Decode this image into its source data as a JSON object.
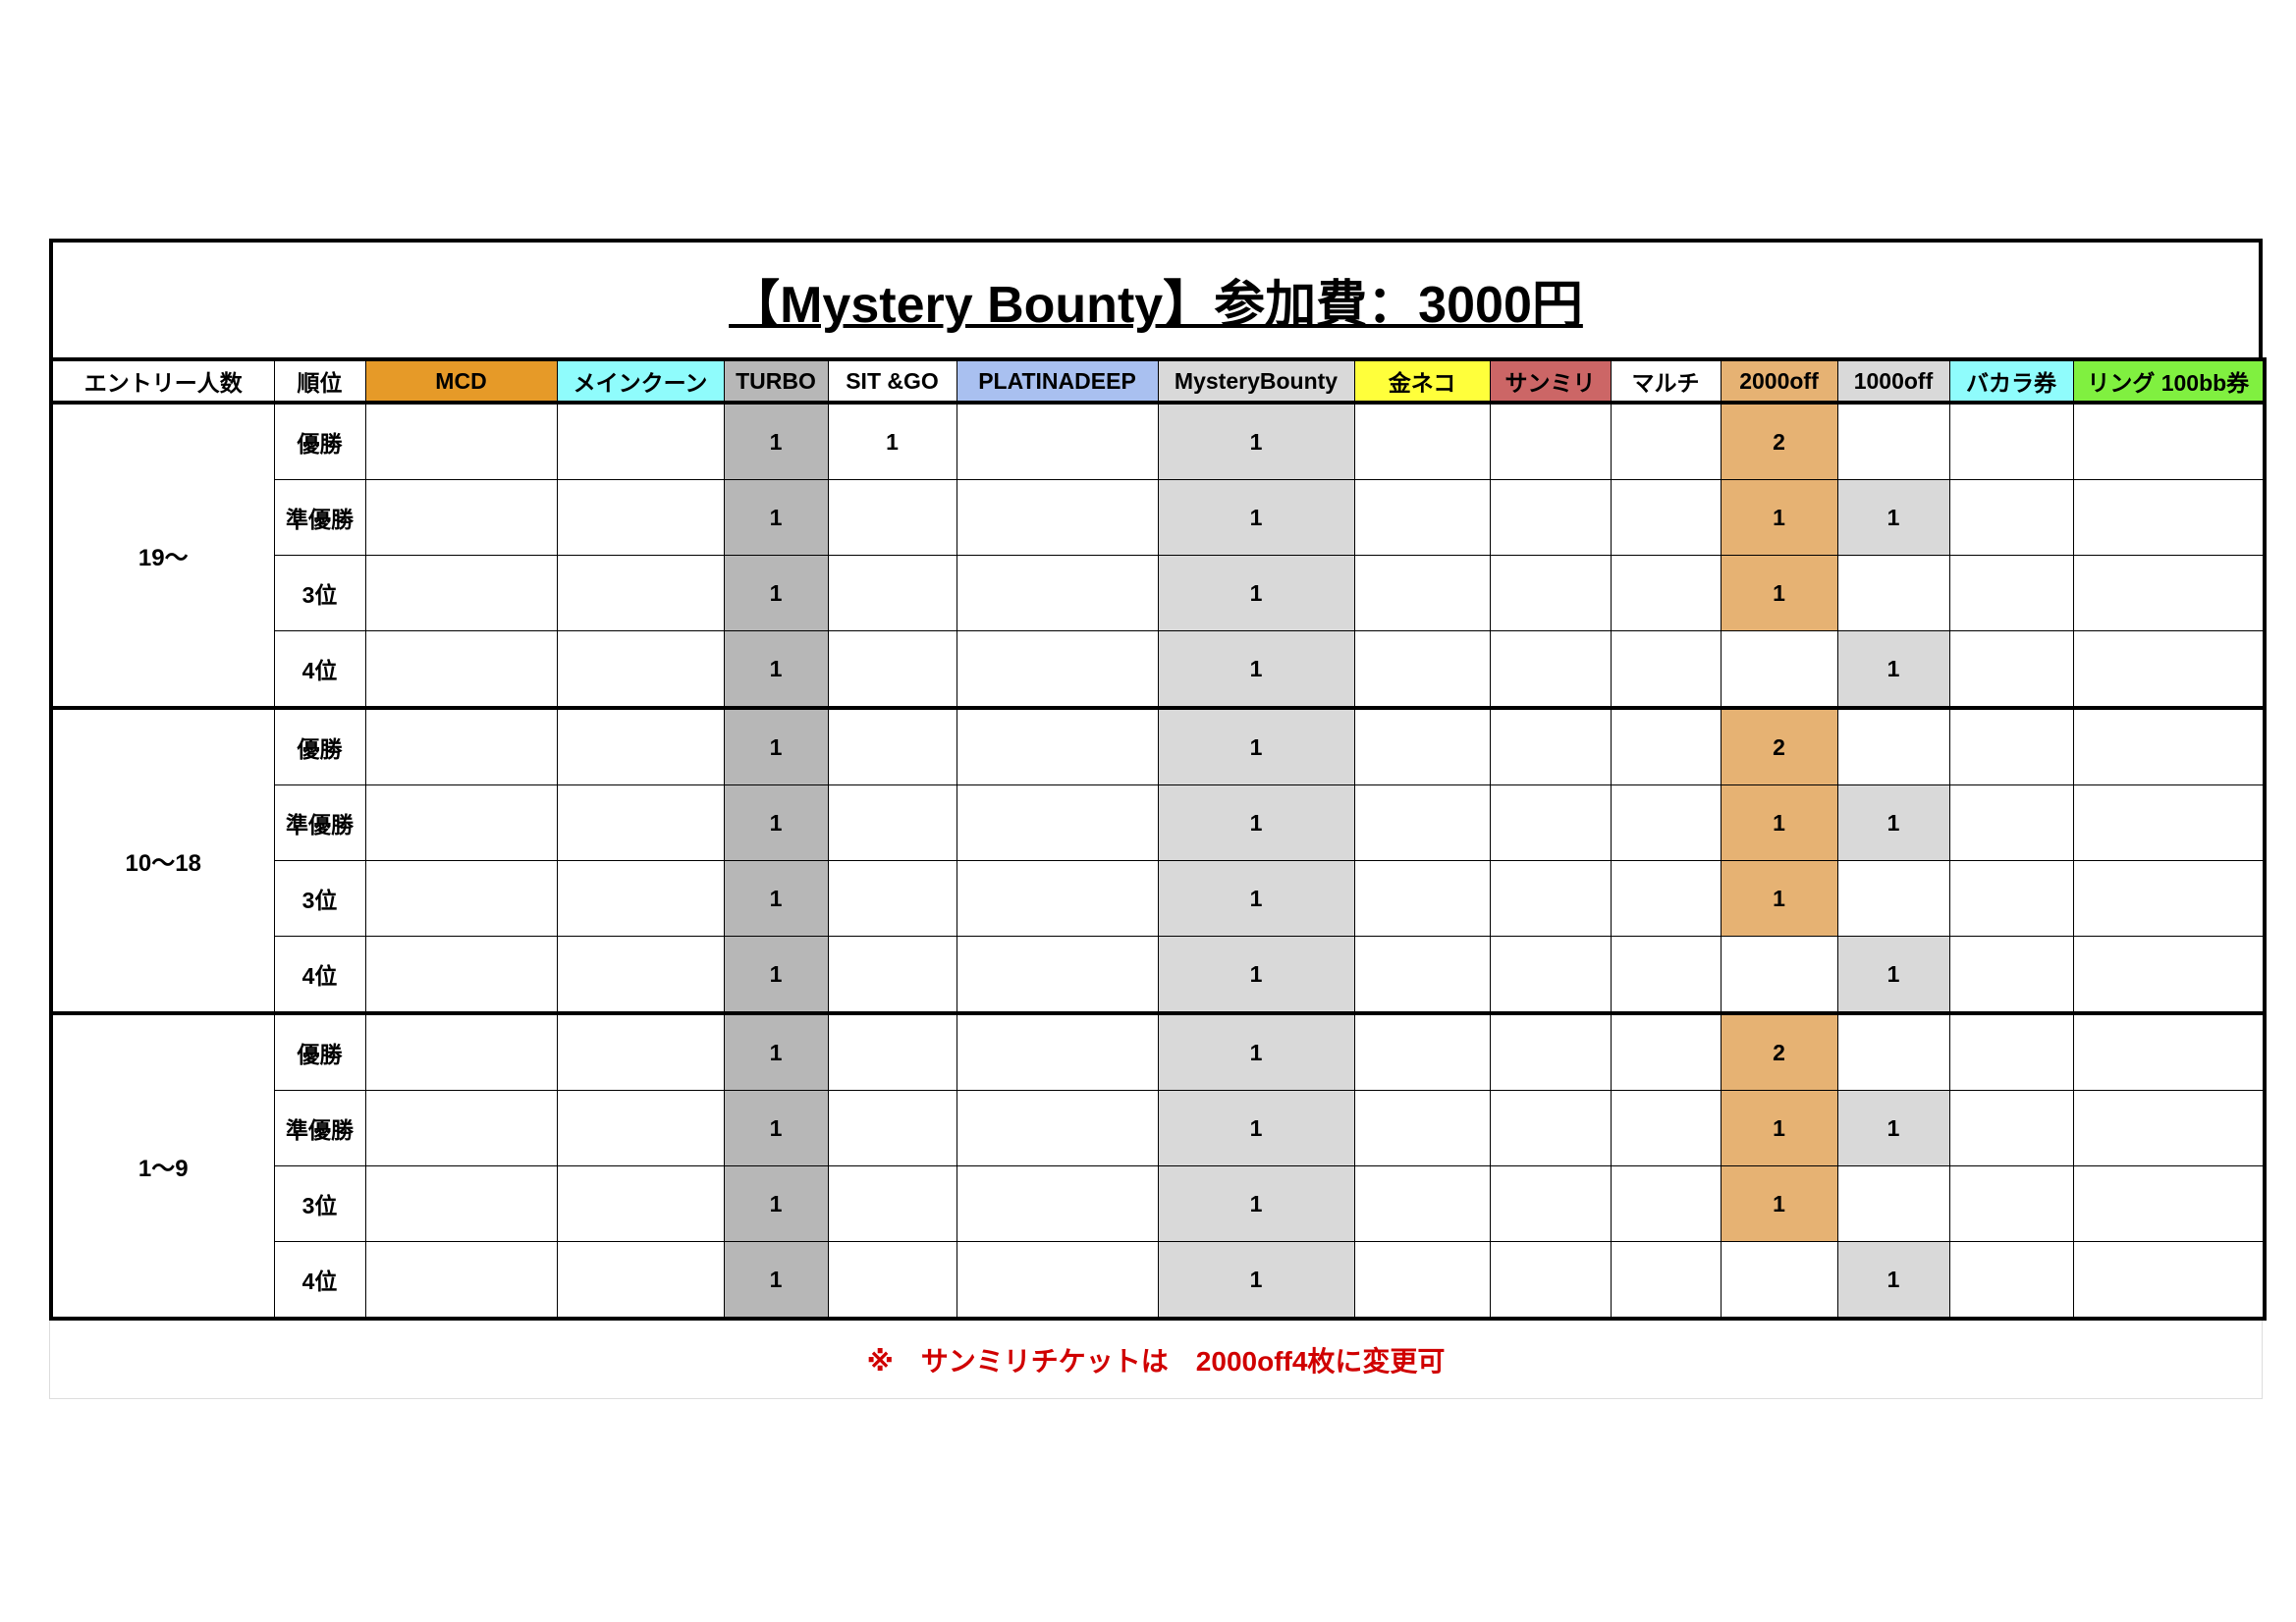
{
  "title": "【Mystery Bounty】参加費：3000円",
  "headers": [
    {
      "label": "エントリー人数",
      "color": "#ffffff"
    },
    {
      "label": "順位",
      "color": "#ffffff"
    },
    {
      "label": "MCD",
      "color": "#e69a28"
    },
    {
      "label": "メインクーン",
      "color": "#8ffcfc"
    },
    {
      "label": "TURBO",
      "color": "#b7b7b7"
    },
    {
      "label": "SIT &GO",
      "color": "#ffffff"
    },
    {
      "label": "PLATINADEEP",
      "color": "#a9c0f0"
    },
    {
      "label": "MysteryBounty",
      "color": "#d9d9d9"
    },
    {
      "label": "金ネコ",
      "color": "#ffff3b"
    },
    {
      "label": "サンミリ",
      "color": "#cc6666"
    },
    {
      "label": "マルチ",
      "color": "#ffffff"
    },
    {
      "label": "2000off",
      "color": "#e6b273"
    },
    {
      "label": "1000off",
      "color": "#d9d9d9"
    },
    {
      "label": "バカラ券",
      "color": "#8ffcfc"
    },
    {
      "label": "リング 100bb券",
      "color": "#80f040"
    }
  ],
  "groups": [
    {
      "entry": "19〜",
      "rows": [
        {
          "rank": "優勝",
          "values": [
            "",
            "",
            "1",
            "1",
            "",
            "1",
            "",
            "",
            "",
            "2",
            "",
            "",
            ""
          ]
        },
        {
          "rank": "準優勝",
          "values": [
            "",
            "",
            "1",
            "",
            "",
            "1",
            "",
            "",
            "",
            "1",
            "1",
            "",
            ""
          ]
        },
        {
          "rank": "3位",
          "values": [
            "",
            "",
            "1",
            "",
            "",
            "1",
            "",
            "",
            "",
            "1",
            "",
            "",
            ""
          ]
        },
        {
          "rank": "4位",
          "values": [
            "",
            "",
            "1",
            "",
            "",
            "1",
            "",
            "",
            "",
            "",
            "1",
            "",
            ""
          ]
        }
      ]
    },
    {
      "entry": "10〜18",
      "rows": [
        {
          "rank": "優勝",
          "values": [
            "",
            "",
            "1",
            "",
            "",
            "1",
            "",
            "",
            "",
            "2",
            "",
            "",
            ""
          ]
        },
        {
          "rank": "準優勝",
          "values": [
            "",
            "",
            "1",
            "",
            "",
            "1",
            "",
            "",
            "",
            "1",
            "1",
            "",
            ""
          ]
        },
        {
          "rank": "3位",
          "values": [
            "",
            "",
            "1",
            "",
            "",
            "1",
            "",
            "",
            "",
            "1",
            "",
            "",
            ""
          ]
        },
        {
          "rank": "4位",
          "values": [
            "",
            "",
            "1",
            "",
            "",
            "1",
            "",
            "",
            "",
            "",
            "1",
            "",
            ""
          ]
        }
      ]
    },
    {
      "entry": "1〜9",
      "rows": [
        {
          "rank": "優勝",
          "values": [
            "",
            "",
            "1",
            "",
            "",
            "1",
            "",
            "",
            "",
            "2",
            "",
            "",
            ""
          ]
        },
        {
          "rank": "準優勝",
          "values": [
            "",
            "",
            "1",
            "",
            "",
            "1",
            "",
            "",
            "",
            "1",
            "1",
            "",
            ""
          ]
        },
        {
          "rank": "3位",
          "values": [
            "",
            "",
            "1",
            "",
            "",
            "1",
            "",
            "",
            "",
            "1",
            "",
            "",
            ""
          ]
        },
        {
          "rank": "4位",
          "values": [
            "",
            "",
            "1",
            "",
            "",
            "1",
            "",
            "",
            "",
            "",
            "1",
            "",
            ""
          ]
        }
      ]
    }
  ],
  "cell_colors": {
    "turbo": "#b7b7b7",
    "mystery": "#d9d9d9",
    "off2000": "#e6b273",
    "off1000": "#d9d9d9"
  },
  "note": "※　サンミリチケットは　2000off4枚に変更可"
}
